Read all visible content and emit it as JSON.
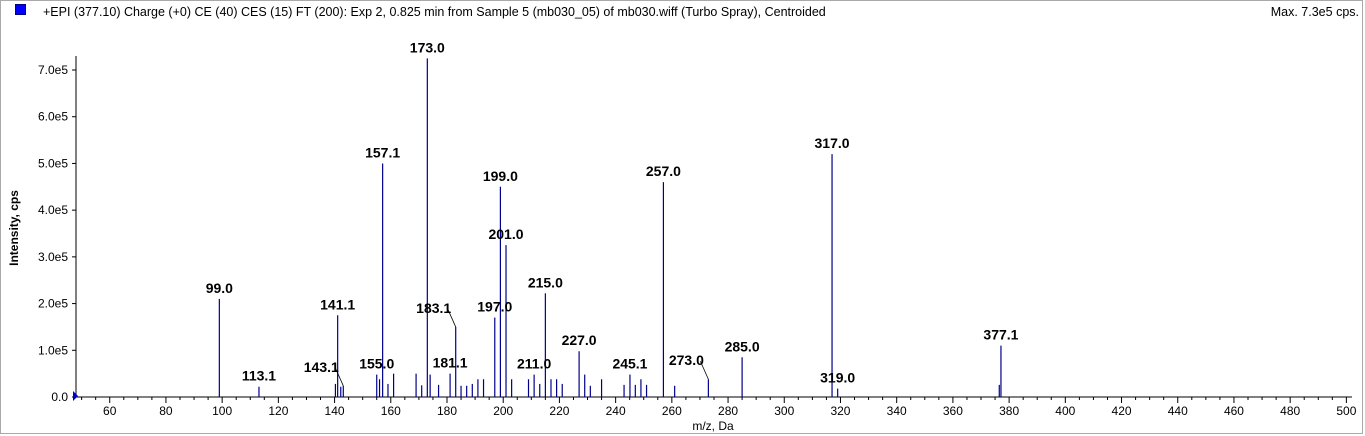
{
  "header": {
    "title": "+EPI (377.10) Charge (+0) CE (40) CES (15) FT (200): Exp 2, 0.825 min from Sample 5 (mb030_05) of mb030.wiff (Turbo Spray), Centroided",
    "max_label": "Max. 7.3e5 cps.",
    "legend_color": "#0000ff"
  },
  "chart_data": {
    "type": "bar",
    "title": "+EPI (377.10) Charge (+0) CE (40) CES (15) FT (200): Exp 2, 0.825 min from Sample 5 (mb030_05) of mb030.wiff (Turbo Spray), Centroided",
    "xlabel": "m/z, Da",
    "ylabel": "Intensity, cps",
    "xlim": [
      48,
      502
    ],
    "ylim": [
      0,
      730000
    ],
    "x_ticks": [
      60,
      80,
      100,
      120,
      140,
      160,
      180,
      200,
      220,
      240,
      260,
      280,
      300,
      320,
      340,
      360,
      380,
      400,
      420,
      440,
      460,
      480,
      500
    ],
    "y_ticks": [
      {
        "value": 0,
        "label": "0.0"
      },
      {
        "value": 100000,
        "label": "1.0e5"
      },
      {
        "value": 200000,
        "label": "2.0e5"
      },
      {
        "value": 300000,
        "label": "3.0e5"
      },
      {
        "value": 400000,
        "label": "4.0e5"
      },
      {
        "value": 500000,
        "label": "5.0e5"
      },
      {
        "value": 600000,
        "label": "6.0e5"
      },
      {
        "value": 700000,
        "label": "7.0e5"
      }
    ],
    "line_color": "#00008b",
    "peaks": [
      {
        "mz": 99.0,
        "intensity": 210000
      },
      {
        "mz": 113.1,
        "intensity": 22000
      },
      {
        "mz": 140.3,
        "intensity": 28000
      },
      {
        "mz": 141.1,
        "intensity": 175000
      },
      {
        "mz": 142.2,
        "intensity": 22000
      },
      {
        "mz": 143.1,
        "intensity": 24000
      },
      {
        "mz": 155.0,
        "intensity": 48000
      },
      {
        "mz": 156.0,
        "intensity": 38000
      },
      {
        "mz": 157.1,
        "intensity": 500000
      },
      {
        "mz": 159.0,
        "intensity": 28000
      },
      {
        "mz": 161.0,
        "intensity": 50000
      },
      {
        "mz": 169.0,
        "intensity": 50000
      },
      {
        "mz": 171.0,
        "intensity": 25000
      },
      {
        "mz": 173.0,
        "intensity": 725000
      },
      {
        "mz": 174.0,
        "intensity": 48000
      },
      {
        "mz": 177.0,
        "intensity": 26000
      },
      {
        "mz": 181.1,
        "intensity": 50000
      },
      {
        "mz": 183.1,
        "intensity": 150000
      },
      {
        "mz": 185.0,
        "intensity": 24000
      },
      {
        "mz": 187.0,
        "intensity": 24000
      },
      {
        "mz": 189.0,
        "intensity": 28000
      },
      {
        "mz": 191.0,
        "intensity": 38000
      },
      {
        "mz": 193.0,
        "intensity": 38000
      },
      {
        "mz": 197.0,
        "intensity": 170000
      },
      {
        "mz": 199.0,
        "intensity": 450000
      },
      {
        "mz": 201.0,
        "intensity": 325000
      },
      {
        "mz": 203.0,
        "intensity": 38000
      },
      {
        "mz": 209.0,
        "intensity": 38000
      },
      {
        "mz": 211.0,
        "intensity": 48000
      },
      {
        "mz": 213.0,
        "intensity": 28000
      },
      {
        "mz": 215.0,
        "intensity": 222000
      },
      {
        "mz": 217.0,
        "intensity": 38000
      },
      {
        "mz": 219.0,
        "intensity": 38000
      },
      {
        "mz": 221.0,
        "intensity": 28000
      },
      {
        "mz": 227.0,
        "intensity": 98000
      },
      {
        "mz": 229.0,
        "intensity": 48000
      },
      {
        "mz": 231.0,
        "intensity": 24000
      },
      {
        "mz": 235.0,
        "intensity": 38000
      },
      {
        "mz": 243.0,
        "intensity": 26000
      },
      {
        "mz": 245.1,
        "intensity": 48000
      },
      {
        "mz": 247.0,
        "intensity": 26000
      },
      {
        "mz": 249.0,
        "intensity": 38000
      },
      {
        "mz": 251.0,
        "intensity": 26000
      },
      {
        "mz": 257.0,
        "intensity": 460000
      },
      {
        "mz": 261.0,
        "intensity": 24000
      },
      {
        "mz": 273.0,
        "intensity": 38000
      },
      {
        "mz": 285.0,
        "intensity": 85000
      },
      {
        "mz": 317.0,
        "intensity": 520000
      },
      {
        "mz": 319.0,
        "intensity": 18000
      },
      {
        "mz": 376.5,
        "intensity": 26000
      },
      {
        "mz": 377.1,
        "intensity": 110000
      }
    ],
    "labels": [
      {
        "text": "99.0",
        "mz": 99.0,
        "intensity": 210000
      },
      {
        "text": "113.1",
        "mz": 113.1,
        "intensity": 22000
      },
      {
        "text": "141.1",
        "mz": 141.1,
        "intensity": 175000
      },
      {
        "text": "143.1",
        "mz": 143.1,
        "intensity": 24000,
        "leader": true
      },
      {
        "text": "155.0",
        "mz": 155.0,
        "intensity": 48000
      },
      {
        "text": "157.1",
        "mz": 157.1,
        "intensity": 500000
      },
      {
        "text": "173.0",
        "mz": 173.0,
        "intensity": 725000
      },
      {
        "text": "181.1",
        "mz": 181.1,
        "intensity": 50000
      },
      {
        "text": "183.1",
        "mz": 183.1,
        "intensity": 150000,
        "leader": true
      },
      {
        "text": "197.0",
        "mz": 197.0,
        "intensity": 170000
      },
      {
        "text": "199.0",
        "mz": 199.0,
        "intensity": 450000
      },
      {
        "text": "201.0",
        "mz": 201.0,
        "intensity": 325000
      },
      {
        "text": "211.0",
        "mz": 211.0,
        "intensity": 48000
      },
      {
        "text": "215.0",
        "mz": 215.0,
        "intensity": 222000
      },
      {
        "text": "227.0",
        "mz": 227.0,
        "intensity": 98000
      },
      {
        "text": "245.1",
        "mz": 245.1,
        "intensity": 48000
      },
      {
        "text": "257.0",
        "mz": 257.0,
        "intensity": 460000
      },
      {
        "text": "273.0",
        "mz": 273.0,
        "intensity": 38000,
        "leader": true
      },
      {
        "text": "285.0",
        "mz": 285.0,
        "intensity": 85000
      },
      {
        "text": "317.0",
        "mz": 317.0,
        "intensity": 520000
      },
      {
        "text": "319.0",
        "mz": 319.0,
        "intensity": 18000
      },
      {
        "text": "377.1",
        "mz": 377.1,
        "intensity": 110000
      }
    ]
  }
}
